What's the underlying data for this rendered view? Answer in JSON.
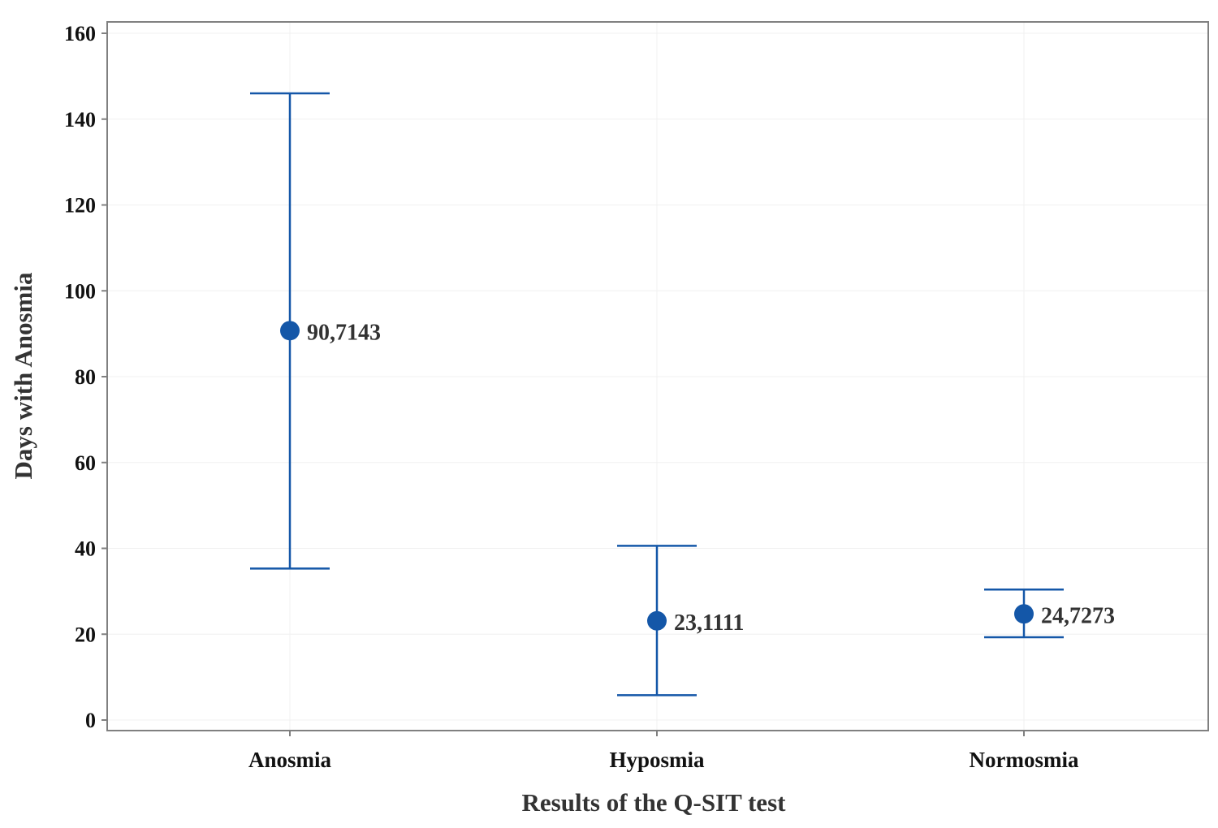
{
  "chart_data": {
    "type": "scatter",
    "title": "",
    "xlabel": "Results of the Q-SIT test",
    "ylabel": "Days with Anosmia",
    "ylim": [
      0,
      160
    ],
    "yticks": [
      0,
      20,
      40,
      60,
      80,
      100,
      120,
      140,
      160
    ],
    "grid": true,
    "legend": "none",
    "categories": [
      "Anosmia",
      "Hyposmia",
      "Normosmia"
    ],
    "series": [
      {
        "values": [
          90.7143,
          23.1111,
          24.7273
        ],
        "labels": [
          "90,7143",
          "23,1111",
          "24,7273"
        ],
        "lower": [
          35.3,
          5.8,
          19.3
        ],
        "upper": [
          146.0,
          40.6,
          30.4
        ]
      }
    ]
  },
  "colors": {
    "series": "#1457a8",
    "frame": "#808080",
    "grid": "#f0f0f0",
    "text": "#111111"
  }
}
